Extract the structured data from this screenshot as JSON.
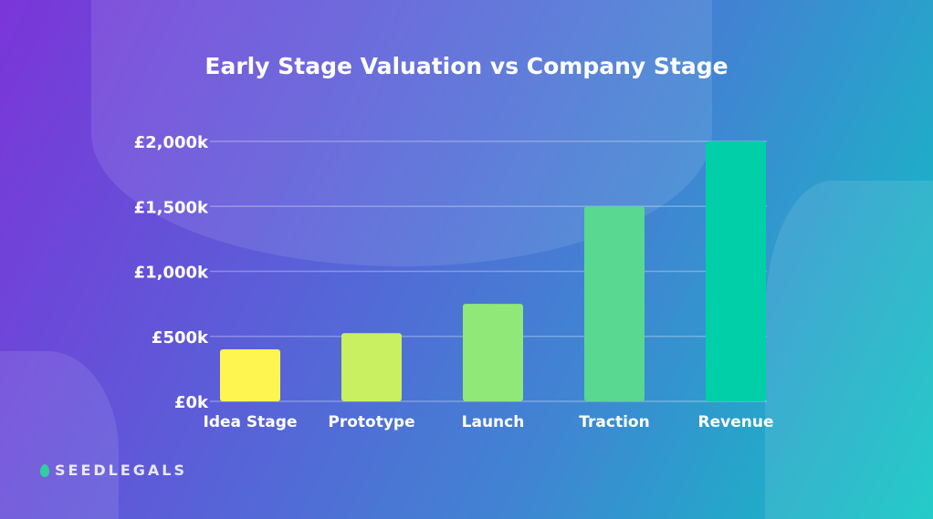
{
  "chart_data": {
    "type": "bar",
    "title": "Early Stage Valuation vs Company Stage",
    "categories": [
      "Idea Stage",
      "Prototype",
      "Launch",
      "Traction",
      "Revenue"
    ],
    "values": [
      400,
      525,
      750,
      1500,
      2000
    ],
    "colors": [
      "#fff550",
      "#c8f060",
      "#90e878",
      "#58d890",
      "#00cfa8"
    ],
    "ytick_labels": [
      "£0k",
      "£500k",
      "£1,000k",
      "£1,500k",
      "£2,000k"
    ],
    "yticks": [
      0,
      500,
      1000,
      1500,
      2000
    ],
    "ylim": [
      0,
      2000
    ],
    "xlabel": "",
    "ylabel": "",
    "grid": true
  },
  "brand": "SEEDLEGALS"
}
